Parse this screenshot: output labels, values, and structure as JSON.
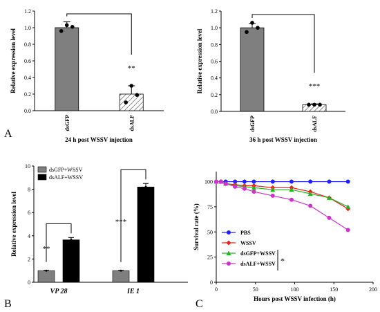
{
  "panel_letters": {
    "a": "A",
    "b": "B",
    "c": "C"
  },
  "colors": {
    "gray_bar": "#7f7f7f",
    "black_bar": "#000000",
    "pbs": "#1f1fff",
    "wssv": "#e8231b",
    "dsgfp_wssv": "#22b422",
    "dsalf_wssv": "#cc33cc"
  },
  "chart_data": [
    {
      "type": "bar",
      "caption": "24 h post WSSV injection",
      "ylabel": "Relative expression level",
      "ylim": [
        0,
        1.2
      ],
      "yticks": [
        "0.0",
        "0.2",
        "0.4",
        "0.6",
        "0.8",
        "1.0",
        "1.2"
      ],
      "categories": [
        "dsGFP",
        "dsALF"
      ],
      "values": [
        1.0,
        0.2
      ],
      "errors": [
        0.07,
        0.1
      ],
      "hatched": [
        false,
        true
      ],
      "points": [
        [
          0.96,
          1.03,
          1.01
        ],
        [
          0.1,
          0.3,
          0.19
        ]
      ],
      "significance": "**"
    },
    {
      "type": "bar",
      "caption": "36 h post WSSV injection",
      "ylabel": "Relative expression level",
      "ylim": [
        0,
        1.2
      ],
      "yticks": [
        "0.0",
        "0.2",
        "0.4",
        "0.6",
        "0.8",
        "1.0",
        "1.2"
      ],
      "categories": [
        "dsGFP",
        "dsALF"
      ],
      "values": [
        1.0,
        0.08
      ],
      "errors": [
        0.05,
        0.01
      ],
      "hatched": [
        false,
        true
      ],
      "points": [
        [
          0.95,
          1.06,
          1.0
        ],
        [
          0.08,
          0.08,
          0.08
        ]
      ],
      "significance": "***"
    },
    {
      "type": "bar",
      "ylabel": "Relative expression level",
      "ylim": [
        0,
        10
      ],
      "yticks": [
        "0",
        "2",
        "4",
        "6",
        "8",
        "10"
      ],
      "categories": [
        "VP 28",
        "IE 1"
      ],
      "series": [
        {
          "name": "dsGFP+WSSV",
          "values": [
            1.0,
            1.0
          ],
          "errors": [
            0.03,
            0.03
          ]
        },
        {
          "name": "dsALF+WSSV",
          "values": [
            3.65,
            8.2
          ],
          "errors": [
            0.2,
            0.3
          ]
        }
      ],
      "significance": [
        "**",
        "***"
      ],
      "legend": "top-left"
    },
    {
      "type": "line",
      "xlabel": "Hours post WSSV infection (h)",
      "ylabel": "Survival rate (%)",
      "xlim": [
        0,
        200
      ],
      "ylim": [
        0,
        110
      ],
      "xticks": [
        "0",
        "50",
        "100",
        "150",
        "200"
      ],
      "yticks": [
        "0",
        "25",
        "50",
        "75",
        "100"
      ],
      "x": [
        0,
        6,
        12,
        24,
        36,
        48,
        72,
        96,
        120,
        144,
        168
      ],
      "series": [
        {
          "name": "PBS",
          "marker": "circle",
          "values": [
            100,
            100,
            100,
            100,
            100,
            100,
            100,
            100,
            100,
            100,
            100
          ]
        },
        {
          "name": "WSSV",
          "marker": "diamond",
          "values": [
            100,
            100,
            98,
            97,
            96,
            96,
            94,
            94,
            90,
            84,
            73
          ]
        },
        {
          "name": "dsGFP+WSSV",
          "marker": "triangle",
          "values": [
            100,
            100,
            98,
            96,
            95,
            94,
            92,
            92,
            88,
            84,
            75
          ]
        },
        {
          "name": "dsALF+WSSV",
          "marker": "circle",
          "values": [
            100,
            100,
            98,
            95,
            93,
            90,
            86,
            82,
            76,
            64,
            52
          ]
        }
      ],
      "significance": "*",
      "legend": "bottom-left"
    }
  ]
}
